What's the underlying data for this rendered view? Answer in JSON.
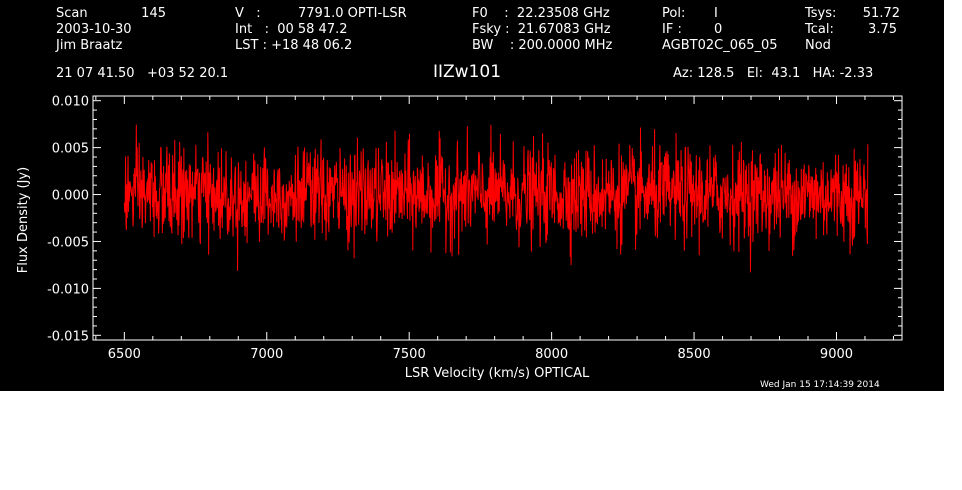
{
  "header": {
    "col1": [
      "Scan",
      "2003-10-30",
      "Jim Braatz"
    ],
    "scan_number": "145",
    "col2": [
      "V   :",
      "Int   :  00 58 47.2",
      "LST : +18 48 06.2"
    ],
    "velocity_value": "7791.0 OPTI-LSR",
    "col3": [
      "F0    :  22.23508 GHz",
      "Fsky :  21.67083 GHz",
      "BW    : 200.0000 MHz"
    ],
    "col4": [
      "Pol:",
      "IF :",
      "AGBT02C_065_05"
    ],
    "pol_value": "I",
    "if_value": "0",
    "col5": [
      "Tsys:",
      "Tcal:",
      "Nod"
    ],
    "tsys_value": "51.72",
    "tcal_value": "3.75",
    "coords": "21 07 41.50   +03 52 20.1",
    "source": "IIZw101",
    "azel": "Az: 128.5   El:  43.1   HA: -2.33"
  },
  "timestamp": "Wed Jan 15 17:14:39 2014",
  "colors": {
    "background": "#000000",
    "axes": "#ffffff",
    "trace": "#ff0000"
  },
  "chart_data": {
    "type": "line",
    "xlabel": "LSR Velocity (km/s) OPTICAL",
    "ylabel": "Flux Density (Jy)",
    "xlim": [
      6390,
      9230
    ],
    "ylim": [
      -0.0155,
      0.0105
    ],
    "x_ticks": [
      6500,
      7000,
      7500,
      8000,
      8500,
      9000
    ],
    "x_tick_labels": [
      "6500",
      "7000",
      "7500",
      "8000",
      "8500",
      "9000"
    ],
    "y_ticks": [
      0.01,
      0.005,
      0.0,
      -0.005,
      -0.01,
      -0.015
    ],
    "y_tick_labels": [
      "0.010",
      "0.005",
      "0.000",
      "-0.005",
      "-0.010",
      "-0.015"
    ],
    "series": [
      {
        "x_start": 6500,
        "x_end": 9110,
        "points": 1800,
        "mean": 0.0,
        "rms": 0.0025,
        "min": -0.0102,
        "max": 0.0095
      }
    ]
  }
}
